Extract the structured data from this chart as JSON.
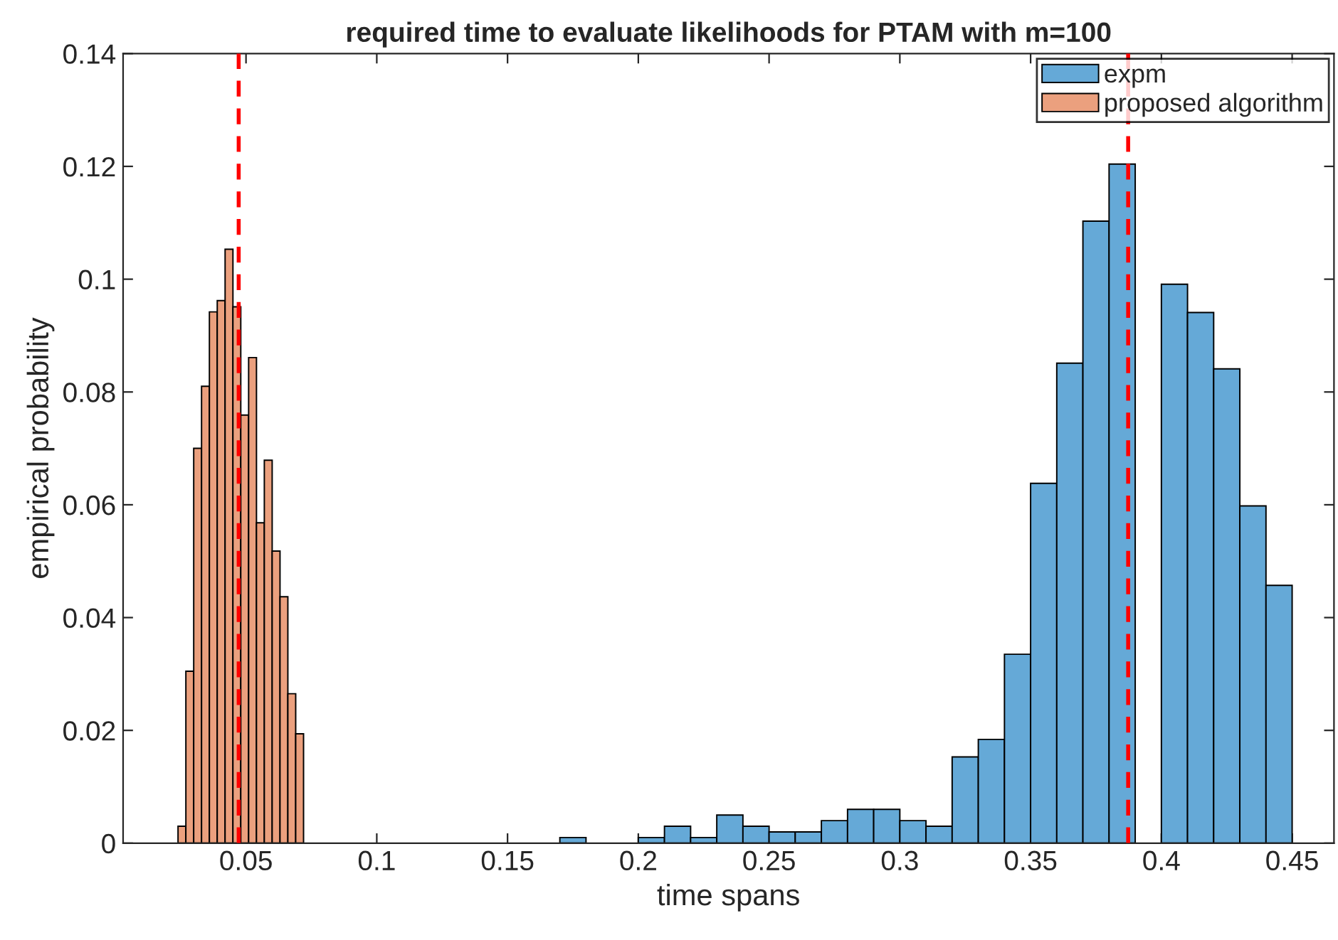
{
  "chart_data": {
    "type": "bar",
    "title": "required time to evaluate likelihoods for PTAM with m=100",
    "xlabel": "time spans",
    "ylabel": "empirical probability",
    "series": [
      {
        "name": "expm",
        "color": "#65a9d7",
        "x": [
          0.175,
          0.185,
          0.195,
          0.205,
          0.215,
          0.225,
          0.235,
          0.245,
          0.255,
          0.265,
          0.275,
          0.285,
          0.295,
          0.305,
          0.315,
          0.325,
          0.335,
          0.345,
          0.355,
          0.365,
          0.375,
          0.385,
          0.395,
          0.405,
          0.415,
          0.425,
          0.435,
          0.445
        ],
        "values": [
          0.001,
          0,
          0,
          0.001,
          0.003,
          0.001,
          0.005,
          0.003,
          0.002,
          0.002,
          0.004,
          0.006,
          0.006,
          0.004,
          0.003,
          0.0153,
          0.0184,
          0.0335,
          0.0638,
          0.0851,
          0.1103,
          0.1204,
          null,
          0.0991,
          0.0941,
          0.0841,
          0.0598,
          0.0457
        ]
      },
      {
        "name": "proposed algorithm",
        "color": "#eba07e",
        "x": [
          0.0255,
          0.0285,
          0.0315,
          0.0345,
          0.0375,
          0.0405,
          0.0435,
          0.0465,
          0.0495,
          0.0525,
          0.0555,
          0.0585,
          0.0615,
          0.0645,
          0.0675,
          0.0705
        ],
        "values": [
          0.003,
          0.0305,
          0.07,
          0.081,
          0.0942,
          0.0962,
          0.1053,
          0.0951,
          0.0759,
          0.0861,
          0.0568,
          0.0679,
          0.0518,
          0.0437,
          0.0265,
          0.0194
        ]
      }
    ],
    "ref_lines": [
      {
        "axis": "x",
        "value": 0.0472,
        "color": "#ff0000",
        "line_style": "dashed"
      },
      {
        "axis": "x",
        "value": 0.3873,
        "color": "#ff0000",
        "line_style": "dashed"
      }
    ],
    "xlim": [
      0.003,
      0.466
    ],
    "xticks": [
      0.05,
      0.1,
      0.15,
      0.2,
      0.25,
      0.3,
      0.35,
      0.4,
      0.45
    ],
    "ylim": [
      0,
      0.14
    ],
    "yticks": [
      0,
      0.02,
      0.04,
      0.06,
      0.08,
      0.1,
      0.12,
      0.14
    ],
    "legend": "top right"
  }
}
